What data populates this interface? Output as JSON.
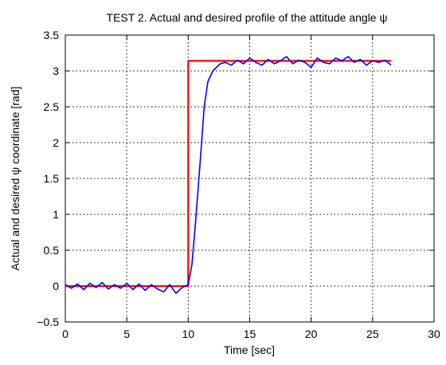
{
  "chart_data": {
    "type": "line",
    "title": "TEST 2. Actual and desired profile of the attitude angle ψ",
    "xlabel": "Time [sec]",
    "ylabel": "Actual and desired ψ coordinate [rad]",
    "xlim": [
      0,
      30
    ],
    "ylim": [
      -0.5,
      3.5
    ],
    "x_ticks": [
      "0",
      "5",
      "10",
      "15",
      "20",
      "25",
      "30"
    ],
    "y_ticks": [
      "−0.5",
      "0",
      "0.5",
      "1",
      "1.5",
      "2",
      "2.5",
      "3",
      "3.5"
    ],
    "grid": true,
    "series": [
      {
        "color": "#ff0000",
        "x": [
          0,
          10,
          10,
          26.5
        ],
        "y": [
          0,
          0,
          3.14,
          3.14
        ]
      },
      {
        "color": "#0000ff",
        "x": [
          0,
          0.5,
          1,
          1.5,
          2,
          2.5,
          3,
          3.5,
          4,
          4.5,
          5,
          5.5,
          6,
          6.5,
          7,
          7.5,
          8,
          8.5,
          9,
          9.5,
          10,
          10.3,
          10.6,
          11,
          11.3,
          11.6,
          12,
          12.3,
          12.6,
          13,
          13.5,
          14,
          14.5,
          15,
          15.5,
          16,
          16.5,
          17,
          17.5,
          18,
          18.5,
          19,
          19.5,
          20,
          20.5,
          21,
          21.5,
          22,
          22.5,
          23,
          23.5,
          24,
          24.5,
          25,
          25.5,
          26,
          26.5
        ],
        "y": [
          0.02,
          -0.03,
          0.03,
          -0.05,
          0.04,
          -0.02,
          0.05,
          -0.04,
          0.02,
          -0.03,
          0.04,
          -0.05,
          0.03,
          -0.06,
          0.02,
          -0.04,
          -0.08,
          0.02,
          -0.1,
          -0.02,
          0.02,
          0.3,
          0.9,
          1.8,
          2.5,
          2.85,
          3.0,
          3.05,
          3.1,
          3.12,
          3.08,
          3.15,
          3.1,
          3.18,
          3.12,
          3.08,
          3.16,
          3.1,
          3.14,
          3.2,
          3.1,
          3.15,
          3.12,
          3.05,
          3.18,
          3.12,
          3.1,
          3.18,
          3.14,
          3.2,
          3.12,
          3.16,
          3.08,
          3.14,
          3.12,
          3.15,
          3.08
        ]
      }
    ]
  }
}
